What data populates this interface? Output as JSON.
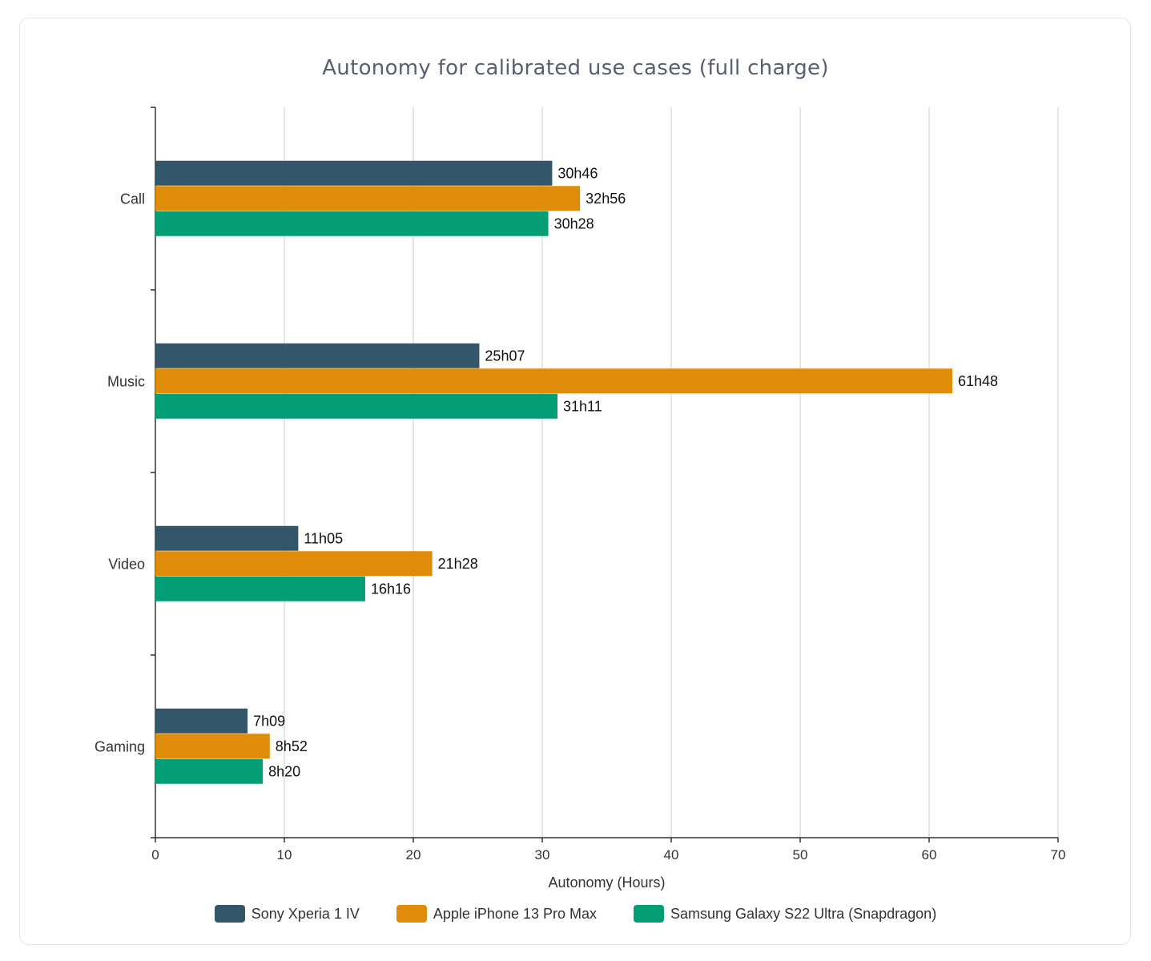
{
  "colors": {
    "sony": "#34566a",
    "apple": "#df8c0a",
    "samsung": "#049e76",
    "grid": "#cccccc",
    "axis": "#333333"
  },
  "chart_data": {
    "type": "bar",
    "orientation": "horizontal",
    "title": "Autonomy for calibrated use cases (full charge)",
    "xlabel": "Autonomy (Hours)",
    "ylabel": "",
    "xlim": [
      0,
      70
    ],
    "xticks": [
      0,
      10,
      20,
      30,
      40,
      50,
      60,
      70
    ],
    "grid": true,
    "legend_position": "bottom",
    "categories": [
      "Call",
      "Music",
      "Video",
      "Gaming"
    ],
    "series": [
      {
        "name": "Sony Xperia 1 IV",
        "color": "#34566a",
        "values": [
          30.77,
          25.12,
          11.08,
          7.15
        ],
        "labels": [
          "30h46",
          "25h07",
          "11h05",
          "7h09"
        ]
      },
      {
        "name": "Apple iPhone 13 Pro Max",
        "color": "#df8c0a",
        "values": [
          32.93,
          61.8,
          21.47,
          8.87
        ],
        "labels": [
          "32h56",
          "61h48",
          "21h28",
          "8h52"
        ]
      },
      {
        "name": "Samsung Galaxy S22 Ultra (Snapdragon)",
        "color": "#049e76",
        "values": [
          30.47,
          31.18,
          16.27,
          8.33
        ],
        "labels": [
          "30h28",
          "31h11",
          "16h16",
          "8h20"
        ]
      }
    ]
  }
}
